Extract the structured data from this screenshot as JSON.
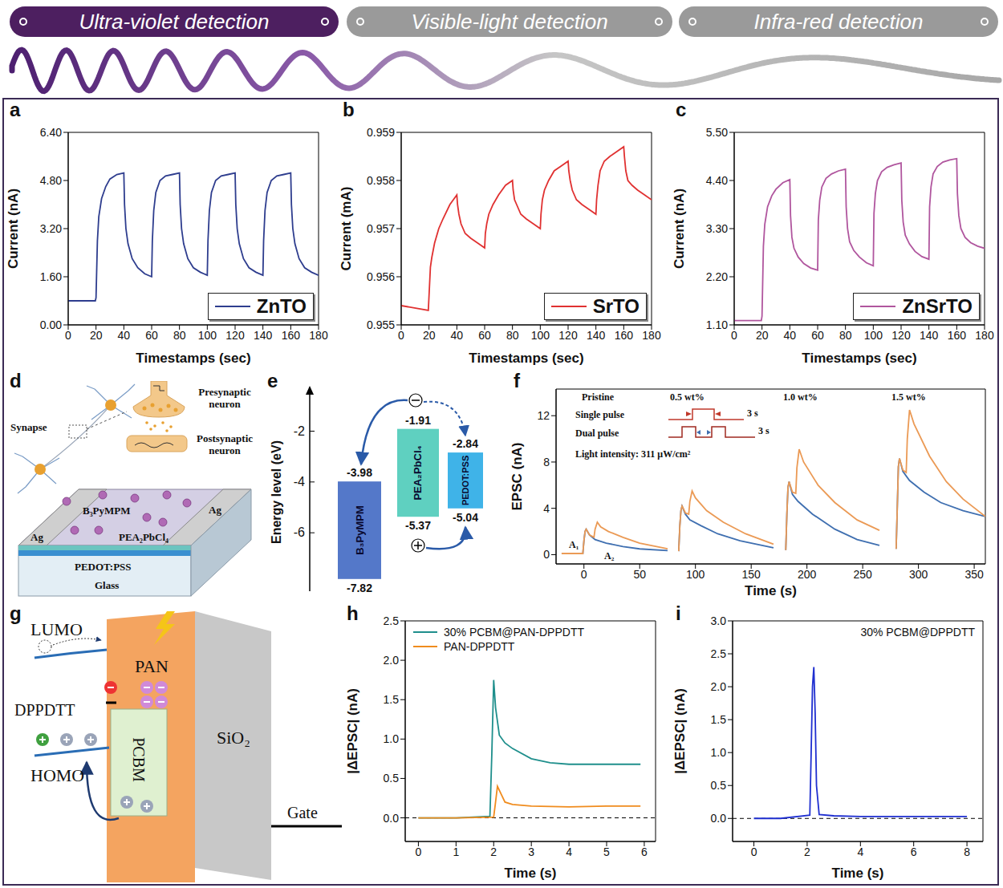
{
  "header": {
    "tabs": [
      "Ultra-violet detection",
      "Visible-light detection",
      "Infra-red detection"
    ]
  },
  "chart_data": [
    {
      "panel": "a",
      "type": "line",
      "xlabel": "Timestamps (sec)",
      "ylabel": "Current (nA)",
      "xlim": [
        0,
        180
      ],
      "xticks": [
        0,
        20,
        40,
        60,
        80,
        100,
        120,
        140,
        160,
        180
      ],
      "ylim": [
        0,
        6.4
      ],
      "yticks": [
        {
          "value": 0,
          "label": "0.00"
        },
        {
          "value": 1.6,
          "label": "1.60"
        },
        {
          "value": 3.2,
          "label": "3.20"
        },
        {
          "value": 4.8,
          "label": "4.80"
        },
        {
          "value": 6.4,
          "label": "6.40"
        }
      ],
      "legend": "lower right",
      "series": [
        {
          "name": "ZnTO",
          "color": "#2e3d8e",
          "x": [
            0,
            19.5,
            20,
            21,
            22,
            24,
            27,
            30,
            35,
            40,
            40.5,
            41.5,
            43,
            46,
            50,
            55,
            60,
            60.5,
            61.5,
            63,
            66,
            70,
            75,
            80,
            80.5,
            81.5,
            83,
            86,
            90,
            95,
            100,
            100.5,
            101.5,
            103,
            106,
            110,
            115,
            120,
            120.5,
            121.5,
            123,
            126,
            130,
            135,
            140,
            140.5,
            141.5,
            143,
            146,
            150,
            155,
            160,
            160.5,
            161.5,
            163,
            166,
            170,
            175,
            180
          ],
          "values": [
            0.8,
            0.8,
            0.9,
            2.8,
            3.6,
            4.2,
            4.6,
            4.85,
            5.0,
            5.05,
            4.0,
            3.2,
            2.7,
            2.2,
            1.9,
            1.7,
            1.6,
            2.8,
            3.8,
            4.4,
            4.8,
            4.95,
            5.0,
            5.05,
            4.0,
            3.2,
            2.7,
            2.2,
            1.9,
            1.75,
            1.65,
            2.8,
            3.8,
            4.4,
            4.8,
            4.95,
            5.0,
            5.05,
            4.0,
            3.2,
            2.7,
            2.2,
            1.9,
            1.75,
            1.65,
            2.8,
            3.8,
            4.4,
            4.8,
            4.95,
            5.0,
            5.05,
            4.0,
            3.2,
            2.7,
            2.2,
            1.9,
            1.75,
            1.65
          ]
        }
      ]
    },
    {
      "panel": "b",
      "type": "line",
      "xlabel": "Timestamps (sec)",
      "ylabel": "Current (mA)",
      "xlim": [
        0,
        180
      ],
      "xticks": [
        0,
        20,
        40,
        60,
        80,
        100,
        120,
        140,
        160,
        180
      ],
      "ylim": [
        0.955,
        0.959
      ],
      "yticks": [
        0.955,
        0.956,
        0.957,
        0.958,
        0.959
      ],
      "legend": "lower right",
      "series": [
        {
          "name": "SrTO",
          "color": "#e03131",
          "x": [
            0,
            19.5,
            20,
            21,
            22,
            24,
            27,
            30,
            35,
            40,
            40.5,
            41.5,
            43,
            46,
            50,
            55,
            60,
            60.5,
            61.5,
            63,
            66,
            70,
            75,
            80,
            80.5,
            81.5,
            83,
            86,
            90,
            95,
            100,
            100.5,
            101.5,
            103,
            106,
            110,
            115,
            120,
            120.5,
            121.5,
            123,
            126,
            130,
            135,
            140,
            140.5,
            141.5,
            143,
            146,
            150,
            155,
            160,
            160.5,
            161.5,
            163,
            166,
            170,
            175,
            180
          ],
          "values": [
            0.9554,
            0.9553,
            0.9556,
            0.9562,
            0.9564,
            0.9567,
            0.957,
            0.9572,
            0.9575,
            0.9577,
            0.9575,
            0.9573,
            0.9571,
            0.9569,
            0.9568,
            0.9567,
            0.9566,
            0.9569,
            0.9571,
            0.9573,
            0.9575,
            0.9577,
            0.9579,
            0.958,
            0.9578,
            0.9576,
            0.9575,
            0.9573,
            0.9572,
            0.9571,
            0.957,
            0.9573,
            0.9576,
            0.9578,
            0.958,
            0.9582,
            0.9583,
            0.9584,
            0.9582,
            0.958,
            0.9578,
            0.9576,
            0.9575,
            0.9574,
            0.9573,
            0.9576,
            0.9579,
            0.9582,
            0.9584,
            0.9585,
            0.9586,
            0.9587,
            0.9585,
            0.9582,
            0.958,
            0.9579,
            0.9578,
            0.9577,
            0.9576
          ]
        }
      ]
    },
    {
      "panel": "c",
      "type": "line",
      "xlabel": "Timestamps (sec)",
      "ylabel": "Current (nA)",
      "xlim": [
        0,
        180
      ],
      "xticks": [
        0,
        20,
        40,
        60,
        80,
        100,
        120,
        140,
        160,
        180
      ],
      "ylim": [
        1.1,
        5.5
      ],
      "yticks": [
        {
          "value": 1.1,
          "label": "1.10"
        },
        {
          "value": 2.2,
          "label": "2.20"
        },
        {
          "value": 3.3,
          "label": "3.30"
        },
        {
          "value": 4.4,
          "label": "4.40"
        },
        {
          "value": 5.5,
          "label": "5.50"
        }
      ],
      "legend": "lower right",
      "series": [
        {
          "name": "ZnSrTO",
          "color": "#b0569e",
          "x": [
            0,
            19.5,
            20,
            21,
            22,
            24,
            27,
            30,
            35,
            40,
            40.5,
            41.5,
            43,
            46,
            50,
            55,
            60,
            60.5,
            61.5,
            63,
            66,
            70,
            75,
            80,
            80.5,
            81.5,
            83,
            86,
            90,
            95,
            100,
            100.5,
            101.5,
            103,
            106,
            110,
            115,
            120,
            120.5,
            121.5,
            123,
            126,
            130,
            135,
            140,
            140.5,
            141.5,
            143,
            146,
            150,
            155,
            160,
            160.5,
            161.5,
            163,
            166,
            170,
            175,
            180
          ],
          "values": [
            1.2,
            1.2,
            1.3,
            2.9,
            3.4,
            3.8,
            4.05,
            4.2,
            4.35,
            4.42,
            3.6,
            3.1,
            2.85,
            2.65,
            2.5,
            2.4,
            2.35,
            3.5,
            3.95,
            4.25,
            4.45,
            4.55,
            4.62,
            4.66,
            3.8,
            3.3,
            3.0,
            2.8,
            2.65,
            2.52,
            2.45,
            3.65,
            4.1,
            4.4,
            4.6,
            4.7,
            4.76,
            4.8,
            3.95,
            3.45,
            3.15,
            2.95,
            2.78,
            2.66,
            2.6,
            3.8,
            4.25,
            4.55,
            4.72,
            4.82,
            4.87,
            4.9,
            4.1,
            3.6,
            3.3,
            3.1,
            2.98,
            2.9,
            2.85
          ]
        }
      ]
    },
    {
      "panel": "f",
      "type": "line",
      "xlabel": "Time (s)",
      "ylabel": "EPSC (nA)",
      "xlim": [
        -25,
        360
      ],
      "xticks": [
        0,
        50,
        100,
        150,
        200,
        250,
        300,
        350
      ],
      "ylim": [
        -0.8,
        14.3
      ],
      "yticks": [
        0,
        4,
        8,
        12
      ],
      "legend": "upper left",
      "group_labels": [
        "Pristine",
        "0.5 wt%",
        "1.0 wt%",
        "1.5 wt%"
      ],
      "pulse_width_labels": [
        "3 s",
        "3 s"
      ],
      "note": "Light intensity: 311 μW/cm²",
      "amplitude_labels": [
        "A₁",
        "A₂"
      ],
      "series": [
        {
          "name": "Single pulse",
          "color": "#3f6fb0",
          "x": [
            -20,
            -1,
            0,
            1,
            2,
            5,
            10,
            20,
            35,
            50,
            75,
            80,
            85,
            86,
            87,
            88,
            91,
            95,
            105,
            120,
            140,
            170,
            175,
            181,
            182,
            183,
            184,
            187,
            192,
            205,
            225,
            245,
            265,
            272,
            280,
            281,
            282,
            283,
            286,
            292,
            305,
            320,
            340,
            360
          ],
          "values": [
            0.1,
            0.1,
            1.2,
            2.0,
            2.2,
            1.7,
            1.3,
            1.0,
            0.7,
            0.5,
            0.35,
            null,
            0.3,
            2.5,
            3.8,
            4.2,
            3.5,
            3.0,
            2.5,
            1.8,
            1.2,
            0.6,
            null,
            0.4,
            3.5,
            5.8,
            6.3,
            5.2,
            4.6,
            3.5,
            2.2,
            1.3,
            0.8,
            null,
            0.5,
            4,
            7.6,
            8.3,
            7.2,
            6.4,
            5.4,
            4.5,
            3.8,
            3.3
          ]
        },
        {
          "name": "Dual pulse",
          "color": "#eb9a55",
          "x": [
            -20,
            -1,
            0,
            1,
            2,
            5,
            9,
            10,
            12,
            15,
            22,
            35,
            50,
            75,
            80,
            85,
            86,
            87,
            88,
            91,
            94,
            95,
            97,
            100,
            110,
            125,
            145,
            170,
            175,
            181,
            182,
            183,
            184,
            187,
            190,
            191,
            193,
            197,
            210,
            225,
            245,
            265,
            272,
            280,
            281,
            282,
            283,
            286,
            289,
            290,
            292,
            296,
            310,
            325,
            340,
            360
          ],
          "values": [
            0.1,
            0.1,
            1.2,
            2.0,
            2.2,
            1.7,
            1.5,
            2.2,
            2.8,
            2.4,
            2.0,
            1.5,
            1.0,
            0.5,
            null,
            0.3,
            2.5,
            3.8,
            4.2,
            3.6,
            3.5,
            4.6,
            5.5,
            4.9,
            3.8,
            2.8,
            1.8,
            0.9,
            null,
            0.4,
            3.5,
            5.8,
            6.3,
            5.4,
            5.3,
            7.5,
            9.1,
            8.0,
            6.0,
            4.5,
            3.0,
            2.1,
            null,
            0.5,
            4,
            7.6,
            8.3,
            7.3,
            7.1,
            10,
            12.5,
            11.3,
            8.5,
            6.3,
            4.8,
            3.3
          ]
        }
      ]
    },
    {
      "panel": "h",
      "type": "line",
      "xlabel": "Time (s)",
      "ylabel": "|ΔEPSC| (nA)",
      "xlim": [
        -0.35,
        6.3
      ],
      "xticks": [
        0,
        1,
        2,
        3,
        4,
        5,
        6
      ],
      "ylim": [
        -0.3,
        2.5
      ],
      "yticks": [
        {
          "value": 0,
          "label": "0.0"
        },
        {
          "value": 0.5,
          "label": "0.5"
        },
        {
          "value": 1,
          "label": "1.0"
        },
        {
          "value": 1.5,
          "label": "1.5"
        },
        {
          "value": 2,
          "label": "2.0"
        },
        {
          "value": 2.5,
          "label": "2.5"
        }
      ],
      "baseline": 0,
      "legend": "upper left",
      "series": [
        {
          "name": "30% PCBM@PAN-DPPDTT",
          "color": "#1f8f8c",
          "x": [
            0,
            1,
            1.9,
            1.95,
            2.0,
            2.05,
            2.15,
            2.3,
            2.5,
            3,
            3.5,
            4,
            5,
            5.9
          ],
          "values": [
            0,
            0,
            0.02,
            0.8,
            1.75,
            1.4,
            1.05,
            0.95,
            0.88,
            0.75,
            0.7,
            0.68,
            0.68,
            0.68
          ]
        },
        {
          "name": "PAN-DPPDTT",
          "color": "#f08c1e",
          "x": [
            0,
            1,
            2.0,
            2.05,
            2.1,
            2.2,
            2.3,
            2.5,
            3,
            4,
            5,
            5.9
          ],
          "values": [
            0,
            0,
            0.01,
            0.2,
            0.4,
            0.3,
            0.2,
            0.17,
            0.15,
            0.14,
            0.15,
            0.15
          ]
        }
      ]
    },
    {
      "panel": "i",
      "type": "line",
      "xlabel": "Time (s)",
      "ylabel": "|ΔEPSC| (nA)",
      "xlim": [
        -0.8,
        8.6
      ],
      "xticks": [
        0,
        2,
        4,
        6,
        8
      ],
      "ylim": [
        -0.35,
        3.0
      ],
      "yticks": [
        {
          "value": 0,
          "label": "0.0"
        },
        {
          "value": 0.5,
          "label": "0.5"
        },
        {
          "value": 1,
          "label": "1.0"
        },
        {
          "value": 1.5,
          "label": "1.5"
        },
        {
          "value": 2,
          "label": "2.0"
        },
        {
          "value": 2.5,
          "label": "2.5"
        },
        {
          "value": 3,
          "label": "3.0"
        }
      ],
      "baseline": 0,
      "legend": "upper right",
      "series": [
        {
          "name": "30% PCBM@DPPDTT",
          "color": "#1f2fd0",
          "x": [
            0,
            1,
            2.1,
            2.15,
            2.2,
            2.25,
            2.3,
            2.35,
            2.45,
            3,
            4,
            5,
            6,
            7,
            8
          ],
          "values": [
            0,
            0,
            0.05,
            1.0,
            2.0,
            2.3,
            1.6,
            0.5,
            0.06,
            0.04,
            0.03,
            0.03,
            0.03,
            0.03,
            0.03
          ]
        }
      ]
    }
  ],
  "diagrams": {
    "d": {
      "panel": "d",
      "labels": {
        "synapse": "Synapse",
        "presynaptic": "Presynaptic neuron",
        "postsynaptic": "Postsynaptic neuron",
        "active_layer": "B₃PyMPM",
        "perovskite": "PEA₂PbCl₄",
        "hole_layer": "PEDOT:PSS",
        "electrode_left": "Ag",
        "electrode_right": "Ag",
        "substrate": "Glass"
      }
    },
    "e": {
      "panel": "e",
      "ylabel": "Energy level (eV)",
      "ylim": [
        -8.3,
        -0.5
      ],
      "yticks": [
        -2,
        -4,
        -6
      ],
      "layers": [
        {
          "name": "B₃PyMPM",
          "lumo": -3.98,
          "homo": -7.82,
          "color": "#5478c9"
        },
        {
          "name": "PEA₂PbCl₄",
          "lumo": -1.91,
          "homo": -5.37,
          "color": "#5fd0c0"
        },
        {
          "name": "PEDOT:PSS",
          "lumo": -2.84,
          "homo": -5.04,
          "color": "#3fb3e8"
        }
      ]
    },
    "g": {
      "panel": "g",
      "labels": {
        "lumo": "LUMO",
        "homo": "HOMO",
        "pan": "PAN",
        "donor": "DPPDTT",
        "acceptor": "PCBM",
        "dielectric": "SiO₂",
        "gate": "Gate"
      }
    }
  }
}
